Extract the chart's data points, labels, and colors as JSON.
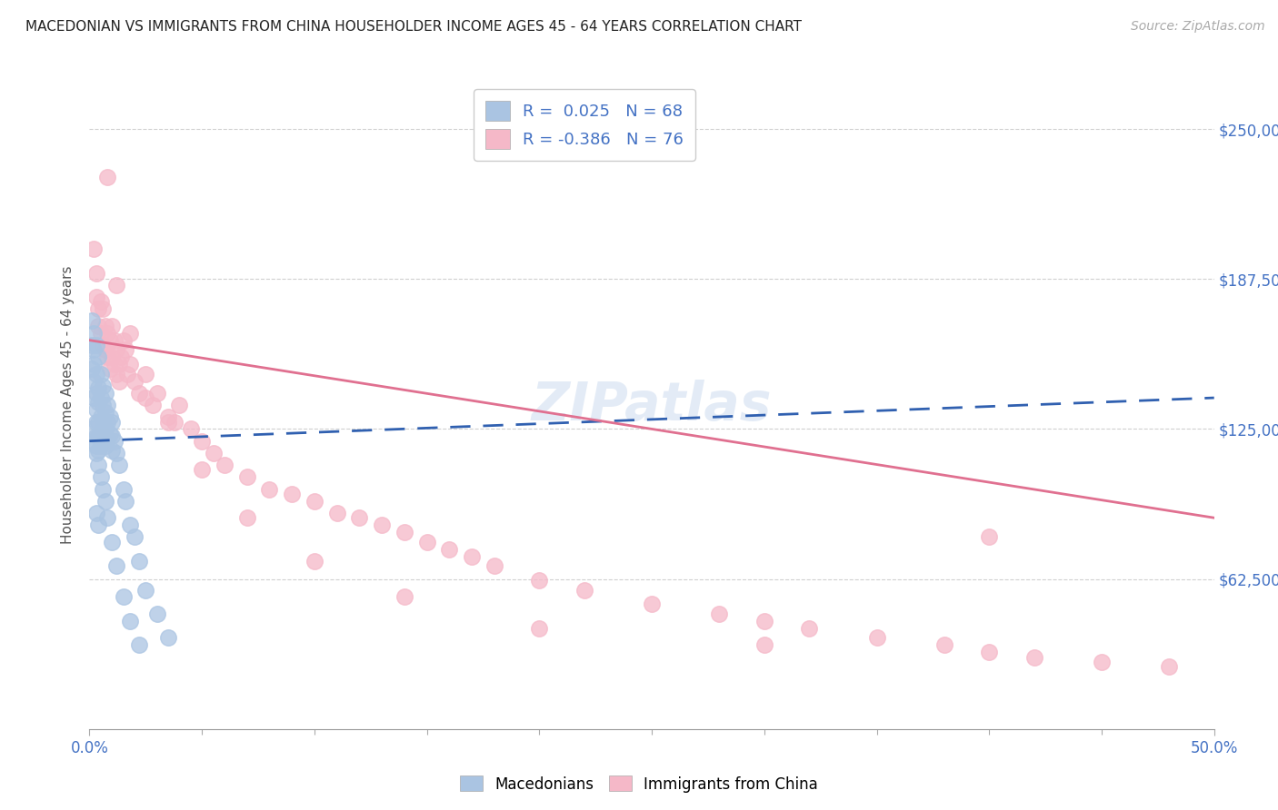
{
  "title": "MACEDONIAN VS IMMIGRANTS FROM CHINA HOUSEHOLDER INCOME AGES 45 - 64 YEARS CORRELATION CHART",
  "source": "Source: ZipAtlas.com",
  "ylabel": "Householder Income Ages 45 - 64 years",
  "ytick_labels": [
    "$62,500",
    "$125,000",
    "$187,500",
    "$250,000"
  ],
  "ytick_values": [
    62500,
    125000,
    187500,
    250000
  ],
  "ylim": [
    0,
    270000
  ],
  "xlim": [
    0.0,
    0.5
  ],
  "macedonian_color": "#aac4e2",
  "china_color": "#f5b8c8",
  "trend_macedonian_color": "#3060b0",
  "trend_china_color": "#e07090",
  "watermark_color": "#c8d8ee",
  "macedonian_x": [
    0.001,
    0.001,
    0.001,
    0.002,
    0.002,
    0.002,
    0.002,
    0.002,
    0.003,
    0.003,
    0.003,
    0.003,
    0.003,
    0.003,
    0.003,
    0.004,
    0.004,
    0.004,
    0.004,
    0.004,
    0.004,
    0.005,
    0.005,
    0.005,
    0.005,
    0.005,
    0.006,
    0.006,
    0.006,
    0.006,
    0.007,
    0.007,
    0.007,
    0.007,
    0.008,
    0.008,
    0.008,
    0.009,
    0.009,
    0.01,
    0.01,
    0.01,
    0.011,
    0.012,
    0.013,
    0.015,
    0.016,
    0.018,
    0.02,
    0.022,
    0.001,
    0.002,
    0.003,
    0.004,
    0.005,
    0.006,
    0.007,
    0.008,
    0.01,
    0.012,
    0.015,
    0.018,
    0.022,
    0.025,
    0.03,
    0.035,
    0.003,
    0.004
  ],
  "macedonian_y": [
    170000,
    160000,
    150000,
    165000,
    158000,
    152000,
    145000,
    138000,
    160000,
    148000,
    140000,
    133000,
    128000,
    122000,
    118000,
    155000,
    142000,
    136000,
    128000,
    122000,
    116000,
    148000,
    138000,
    130000,
    124000,
    118000,
    143000,
    135000,
    128000,
    120000,
    140000,
    132000,
    125000,
    118000,
    135000,
    128000,
    121000,
    130000,
    123000,
    128000,
    122000,
    116000,
    120000,
    115000,
    110000,
    100000,
    95000,
    85000,
    80000,
    70000,
    125000,
    120000,
    115000,
    110000,
    105000,
    100000,
    95000,
    88000,
    78000,
    68000,
    55000,
    45000,
    35000,
    58000,
    48000,
    38000,
    90000,
    85000
  ],
  "china_x": [
    0.002,
    0.003,
    0.003,
    0.004,
    0.004,
    0.005,
    0.005,
    0.006,
    0.006,
    0.007,
    0.007,
    0.008,
    0.008,
    0.009,
    0.009,
    0.01,
    0.01,
    0.011,
    0.011,
    0.012,
    0.012,
    0.013,
    0.013,
    0.014,
    0.015,
    0.016,
    0.017,
    0.018,
    0.02,
    0.022,
    0.025,
    0.028,
    0.03,
    0.035,
    0.038,
    0.04,
    0.045,
    0.05,
    0.055,
    0.06,
    0.07,
    0.08,
    0.09,
    0.1,
    0.11,
    0.12,
    0.13,
    0.14,
    0.15,
    0.16,
    0.17,
    0.18,
    0.2,
    0.22,
    0.25,
    0.28,
    0.3,
    0.32,
    0.35,
    0.38,
    0.4,
    0.42,
    0.45,
    0.48,
    0.008,
    0.012,
    0.018,
    0.025,
    0.035,
    0.05,
    0.07,
    0.1,
    0.14,
    0.2,
    0.3,
    0.4
  ],
  "china_y": [
    200000,
    190000,
    180000,
    175000,
    168000,
    178000,
    165000,
    175000,
    160000,
    168000,
    158000,
    165000,
    155000,
    162000,
    150000,
    168000,
    155000,
    162000,
    152000,
    158000,
    148000,
    152000,
    145000,
    155000,
    162000,
    158000,
    148000,
    152000,
    145000,
    140000,
    138000,
    135000,
    140000,
    130000,
    128000,
    135000,
    125000,
    120000,
    115000,
    110000,
    105000,
    100000,
    98000,
    95000,
    90000,
    88000,
    85000,
    82000,
    78000,
    75000,
    72000,
    68000,
    62000,
    58000,
    52000,
    48000,
    45000,
    42000,
    38000,
    35000,
    32000,
    30000,
    28000,
    26000,
    230000,
    185000,
    165000,
    148000,
    128000,
    108000,
    88000,
    70000,
    55000,
    42000,
    35000,
    80000
  ]
}
